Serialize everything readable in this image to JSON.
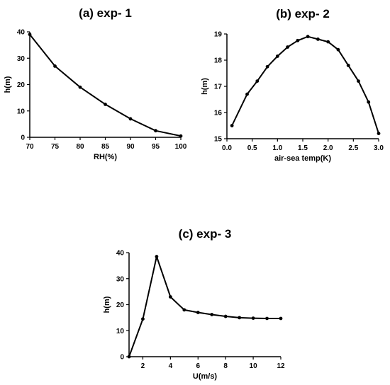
{
  "chart_data": [
    {
      "type": "line",
      "title": "(a) exp- 1",
      "xlabel": "RH(%)",
      "ylabel": "h(m)",
      "xlim": [
        70,
        100
      ],
      "ylim": [
        0,
        40
      ],
      "xticks": [
        70,
        75,
        80,
        85,
        90,
        95,
        100
      ],
      "yticks": [
        0,
        10,
        20,
        30,
        40
      ],
      "grid": false,
      "series": [
        {
          "x": [
            70,
            75,
            80,
            85,
            90,
            95,
            100
          ],
          "y": [
            39,
            27,
            19,
            12.5,
            7,
            2.5,
            0.5
          ]
        }
      ]
    },
    {
      "type": "line",
      "title": "(b) exp- 2",
      "xlabel": "air-sea temp(K)",
      "ylabel": "h(m)",
      "xlim": [
        0.0,
        3.0
      ],
      "ylim": [
        15,
        19
      ],
      "xticks": [
        "0.0",
        "0.5",
        "1.0",
        "1.5",
        "2.0",
        "2.5",
        "3.0"
      ],
      "yticks": [
        15,
        16,
        17,
        18,
        19
      ],
      "grid": false,
      "series": [
        {
          "x": [
            0.1,
            0.4,
            0.6,
            0.8,
            1.0,
            1.2,
            1.4,
            1.6,
            1.8,
            2.0,
            2.2,
            2.4,
            2.6,
            2.8,
            3.0
          ],
          "y": [
            15.5,
            16.7,
            17.2,
            17.75,
            18.15,
            18.5,
            18.75,
            18.9,
            18.8,
            18.7,
            18.4,
            17.8,
            17.2,
            16.4,
            15.2
          ]
        }
      ]
    },
    {
      "type": "line",
      "title": "(c) exp- 3",
      "xlabel": "U(m/s)",
      "ylabel": "h(m)",
      "xlim": [
        1,
        12
      ],
      "ylim": [
        0,
        40
      ],
      "xticks": [
        2,
        4,
        6,
        8,
        10,
        12
      ],
      "yticks": [
        0,
        10,
        20,
        30,
        40
      ],
      "grid": false,
      "series": [
        {
          "x": [
            1,
            2,
            3,
            4,
            5,
            6,
            7,
            8,
            9,
            10,
            11,
            12
          ],
          "y": [
            0,
            14.5,
            38.5,
            23,
            18,
            17,
            16.2,
            15.5,
            15,
            14.8,
            14.7,
            14.7
          ]
        }
      ]
    }
  ]
}
